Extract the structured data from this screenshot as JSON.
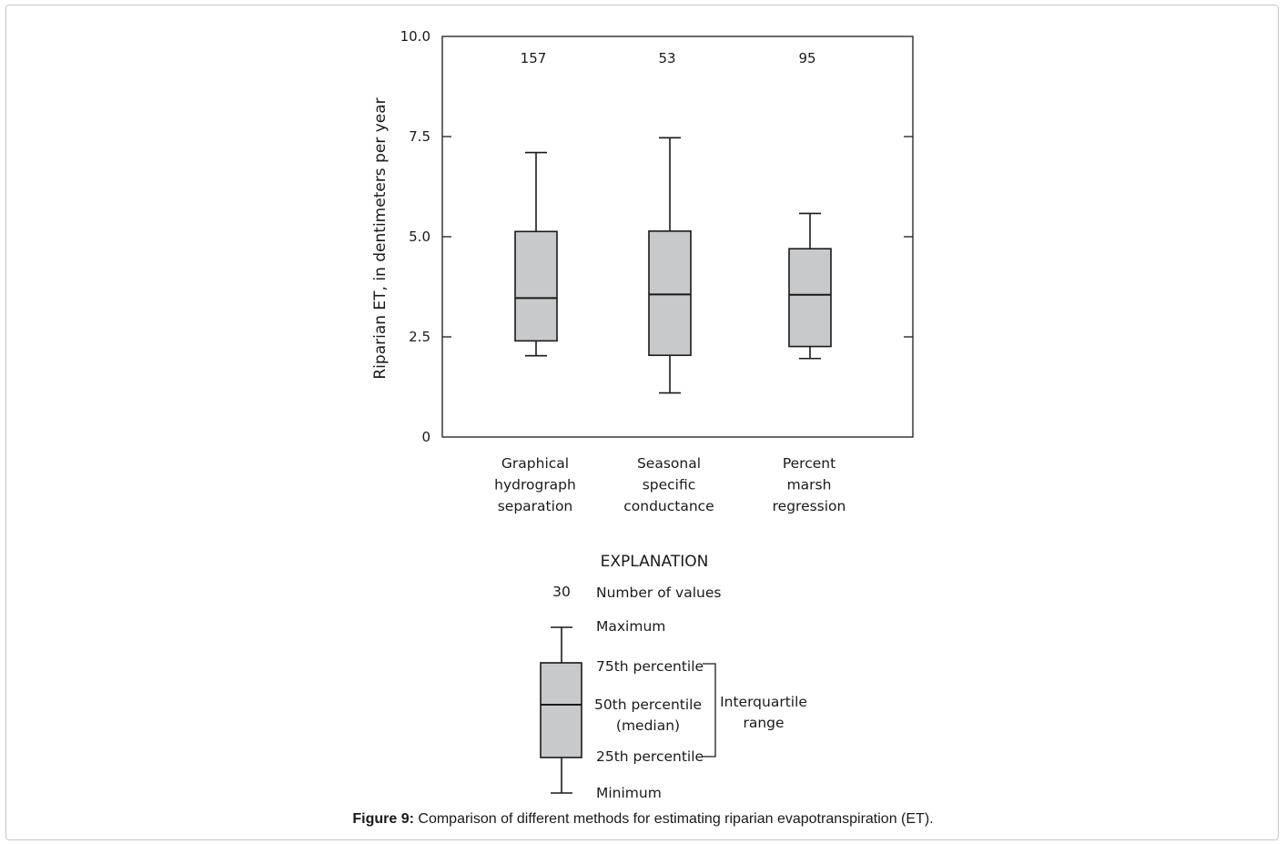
{
  "chart_data": {
    "type": "box",
    "ylabel": "Riparian ET, in dentimeters per year",
    "ylim": [
      0,
      10
    ],
    "yticks": [
      {
        "value": 0,
        "label": "0"
      },
      {
        "value": 2.5,
        "label": "2.5"
      },
      {
        "value": 5,
        "label": "5.0"
      },
      {
        "value": 7.5,
        "label": "7.5"
      },
      {
        "value": 10,
        "label": "10.0"
      }
    ],
    "categories": [
      {
        "lines": [
          "Graphical",
          "hydrograph",
          "separation"
        ],
        "n": "157",
        "min": 2.03,
        "q1": 2.4,
        "median": 3.47,
        "q3": 5.13,
        "max": 7.1
      },
      {
        "lines": [
          "Seasonal",
          "specific",
          "conductance"
        ],
        "n": "53",
        "min": 1.1,
        "q1": 2.04,
        "median": 3.56,
        "q3": 5.14,
        "max": 7.47
      },
      {
        "lines": [
          "Percent",
          "marsh",
          "regression"
        ],
        "n": "95",
        "min": 1.96,
        "q1": 2.26,
        "median": 3.55,
        "q3": 4.7,
        "max": 5.58
      }
    ],
    "box_fill": "#c8c9cb"
  },
  "explanation": {
    "title": "EXPLANATION",
    "count_example": "30",
    "count_label": "Number of values",
    "maximum": "Maximum",
    "p75": "75th percentile",
    "p50_line1": "50th percentile",
    "p50_line2": "(median)",
    "p25": "25th percentile",
    "minimum": "Minimum",
    "iqr_line1": "Interquartile",
    "iqr_line2": "range"
  },
  "caption": {
    "bold": "Figure 9:",
    "text": " Comparison of different methods for estimating riparian evapotranspiration (ET)."
  }
}
